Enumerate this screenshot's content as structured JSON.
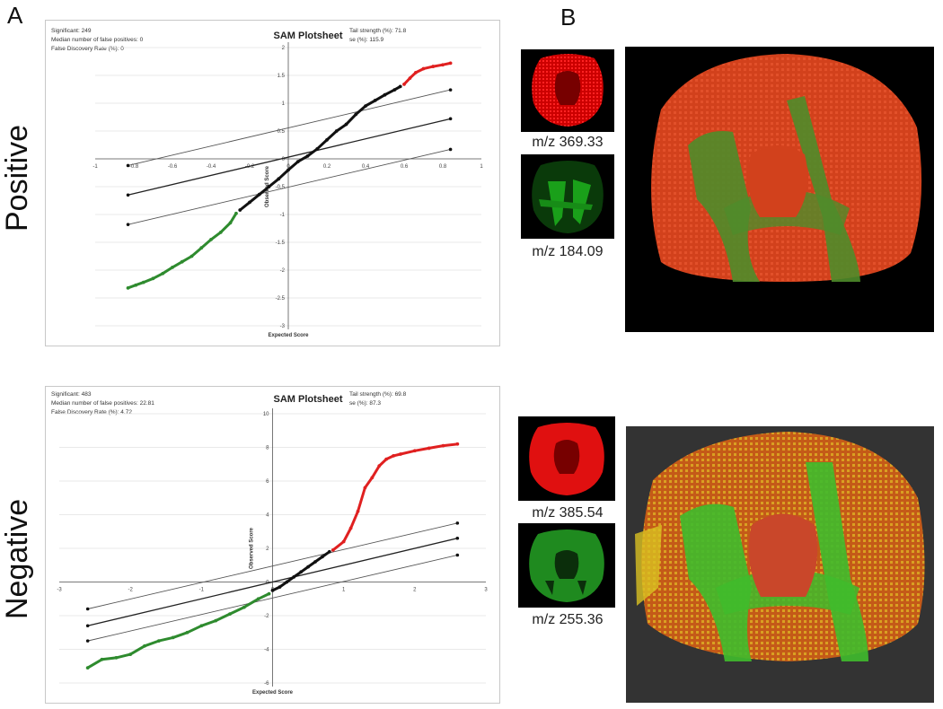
{
  "panels": {
    "a": "A",
    "b": "B"
  },
  "rows": {
    "positive": "Positive",
    "negative": "Negative"
  },
  "plots": [
    {
      "title": "SAM Plotsheet",
      "stats_left": [
        "Significant: 249",
        "Median number of false positives: 0",
        "False Discovery Rate (%): 0"
      ],
      "stats_right": [
        "Tail strength (%): 71.8",
        "se (%): 115.9"
      ],
      "xlabel": "Expected Score",
      "ylabel": "Observed Score",
      "xticks": [
        "-1",
        "-0.8",
        "-0.6",
        "-0.4",
        "-0.2",
        "0",
        "0.2",
        "0.4",
        "0.6",
        "0.8",
        "1"
      ],
      "yticks": [
        "2",
        "1.5",
        "1",
        "0.5",
        "0",
        "-0.5",
        "-1",
        "-1.5",
        "-2",
        "-2.5",
        "-3"
      ]
    },
    {
      "title": "SAM Plotsheet",
      "stats_left": [
        "Significant: 483",
        "Median number of false positives: 22.81",
        "False Discovery Rate (%): 4.72"
      ],
      "stats_right": [
        "Tail strength (%): 69.8",
        "se (%): 87.3"
      ],
      "xlabel": "Expected Score",
      "ylabel": "Observed Score",
      "xticks": [
        "-3",
        "-2",
        "-1",
        "0",
        "1",
        "2",
        "3"
      ],
      "yticks": [
        "10",
        "8",
        "6",
        "4",
        "2",
        "0",
        "-2",
        "-4",
        "-6"
      ]
    }
  ],
  "chart_data": [
    {
      "type": "scatter",
      "title": "SAM Plotsheet",
      "xlabel": "Expected Score",
      "ylabel": "Observed Score",
      "xlim": [
        -1,
        1
      ],
      "ylim": [
        -3,
        2
      ],
      "series": [
        {
          "color": "#2e8b2e",
          "points": [
            [
              -0.83,
              -2.32
            ],
            [
              -0.79,
              -2.27
            ],
            [
              -0.75,
              -2.22
            ],
            [
              -0.7,
              -2.15
            ],
            [
              -0.65,
              -2.06
            ],
            [
              -0.6,
              -1.95
            ],
            [
              -0.55,
              -1.85
            ],
            [
              -0.5,
              -1.75
            ],
            [
              -0.45,
              -1.6
            ],
            [
              -0.4,
              -1.45
            ],
            [
              -0.35,
              -1.32
            ],
            [
              -0.3,
              -1.15
            ],
            [
              -0.27,
              -0.98
            ]
          ]
        },
        {
          "color": "#111111",
          "points": [
            [
              -0.25,
              -0.92
            ],
            [
              -0.2,
              -0.78
            ],
            [
              -0.15,
              -0.64
            ],
            [
              -0.1,
              -0.5
            ],
            [
              -0.05,
              -0.36
            ],
            [
              0.0,
              -0.2
            ],
            [
              0.05,
              -0.05
            ],
            [
              0.1,
              0.05
            ],
            [
              0.15,
              0.18
            ],
            [
              0.2,
              0.34
            ],
            [
              0.25,
              0.5
            ],
            [
              0.3,
              0.62
            ],
            [
              0.35,
              0.8
            ],
            [
              0.4,
              0.95
            ],
            [
              0.45,
              1.05
            ],
            [
              0.5,
              1.15
            ],
            [
              0.55,
              1.24
            ],
            [
              0.58,
              1.3
            ]
          ]
        },
        {
          "color": "#e02020",
          "points": [
            [
              0.6,
              1.34
            ],
            [
              0.63,
              1.45
            ],
            [
              0.66,
              1.55
            ],
            [
              0.7,
              1.62
            ],
            [
              0.75,
              1.66
            ],
            [
              0.8,
              1.69
            ],
            [
              0.84,
              1.72
            ]
          ]
        }
      ],
      "lines": [
        {
          "x": [
            -0.83,
            0.84
          ],
          "y": [
            -1.18,
            0.17
          ]
        },
        {
          "x": [
            -0.83,
            0.84
          ],
          "y": [
            -0.65,
            0.72
          ]
        },
        {
          "x": [
            -0.83,
            0.84
          ],
          "y": [
            -0.12,
            1.24
          ]
        }
      ],
      "colors": {
        "down": "#2e8b2e",
        "mid": "#111111",
        "up": "#e02020"
      }
    },
    {
      "type": "scatter",
      "title": "SAM Plotsheet",
      "xlabel": "Expected Score",
      "ylabel": "Observed Score",
      "xlim": [
        -3,
        3
      ],
      "ylim": [
        -6,
        10
      ],
      "series": [
        {
          "color": "#2e8b2e",
          "points": [
            [
              -2.6,
              -5.1
            ],
            [
              -2.4,
              -4.6
            ],
            [
              -2.2,
              -4.5
            ],
            [
              -2.0,
              -4.3
            ],
            [
              -1.8,
              -3.8
            ],
            [
              -1.6,
              -3.5
            ],
            [
              -1.4,
              -3.3
            ],
            [
              -1.2,
              -3.0
            ],
            [
              -1.0,
              -2.6
            ],
            [
              -0.8,
              -2.3
            ],
            [
              -0.6,
              -1.9
            ],
            [
              -0.4,
              -1.5
            ],
            [
              -0.2,
              -1.0
            ],
            [
              -0.05,
              -0.7
            ]
          ]
        },
        {
          "color": "#111111",
          "points": [
            [
              0.0,
              -0.5
            ],
            [
              0.1,
              -0.3
            ],
            [
              0.2,
              0.0
            ],
            [
              0.3,
              0.3
            ],
            [
              0.4,
              0.6
            ],
            [
              0.5,
              0.9
            ],
            [
              0.6,
              1.2
            ],
            [
              0.7,
              1.5
            ],
            [
              0.8,
              1.8
            ]
          ]
        },
        {
          "color": "#e02020",
          "points": [
            [
              0.85,
              1.9
            ],
            [
              1.0,
              2.4
            ],
            [
              1.1,
              3.2
            ],
            [
              1.2,
              4.2
            ],
            [
              1.3,
              5.6
            ],
            [
              1.4,
              6.2
            ],
            [
              1.5,
              6.9
            ],
            [
              1.6,
              7.3
            ],
            [
              1.7,
              7.5
            ],
            [
              1.8,
              7.6
            ],
            [
              2.0,
              7.8
            ],
            [
              2.2,
              7.95
            ],
            [
              2.4,
              8.1
            ],
            [
              2.6,
              8.2
            ]
          ]
        }
      ],
      "lines": [
        {
          "x": [
            -2.6,
            2.6
          ],
          "y": [
            -3.5,
            1.6
          ]
        },
        {
          "x": [
            -2.6,
            2.6
          ],
          "y": [
            -2.6,
            2.6
          ]
        },
        {
          "x": [
            -2.6,
            2.6
          ],
          "y": [
            -1.6,
            3.5
          ]
        }
      ],
      "colors": {
        "down": "#2e8b2e",
        "mid": "#111111",
        "up": "#e02020"
      }
    }
  ],
  "images": {
    "positive": {
      "mz_red": "m/z 369.33",
      "mz_green": "m/z 184.09"
    },
    "negative": {
      "mz_red": "m/z 385.54",
      "mz_green": "m/z 255.36"
    },
    "colors": {
      "red": "#e01010",
      "green": "#22c022",
      "orange": "#d86a10",
      "yellow": "#c8c020"
    }
  }
}
